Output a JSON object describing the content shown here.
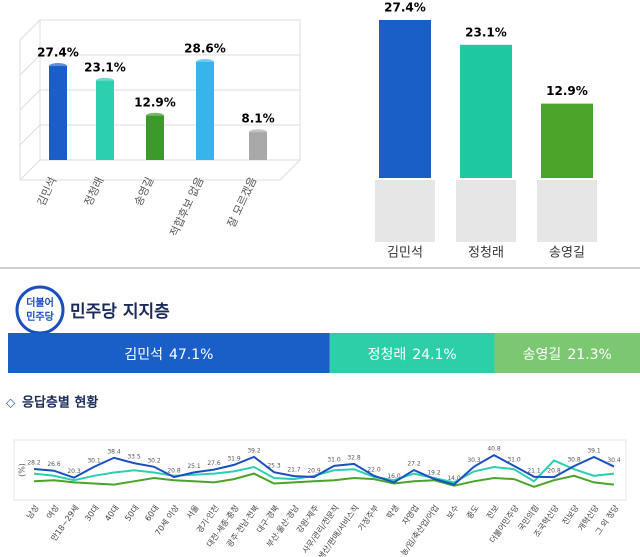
{
  "chart_data": [
    {
      "type": "bar3d",
      "categories": [
        "김민석",
        "정청래",
        "송영길",
        "적합후보 없음",
        "잘 모르겠음"
      ],
      "values": [
        27.4,
        23.1,
        12.9,
        28.6,
        8.1
      ],
      "value_labels": [
        "27.4%",
        "23.1%",
        "12.9%",
        "28.6%",
        "8.1%"
      ],
      "colors": [
        "#1a5fc8",
        "#2ccfb0",
        "#3a9a2a",
        "#37b4ea",
        "#a8a8a8"
      ],
      "ylim": [
        0,
        35
      ]
    },
    {
      "type": "bar",
      "categories": [
        "김민석",
        "정청래",
        "송영길"
      ],
      "values": [
        27.4,
        23.1,
        12.9
      ],
      "value_labels": [
        "27.4%",
        "23.1%",
        "12.9%"
      ],
      "colors": [
        "#1a5fc8",
        "#1ec8a0",
        "#4ca32a"
      ],
      "ylim": [
        0,
        27.4
      ]
    },
    {
      "type": "stacked-hbar",
      "title": "민주당 지지층",
      "logo": [
        "더불어",
        "민주당"
      ],
      "series": [
        {
          "name": "김민석",
          "values": [
            47.1
          ],
          "value_labels": [
            "47.1%"
          ],
          "color": "#1a5fc8"
        },
        {
          "name": "정청래",
          "values": [
            24.1
          ],
          "value_labels": [
            "24.1%"
          ],
          "color": "#2ccfa8"
        },
        {
          "name": "송영길",
          "values": [
            21.3
          ],
          "value_labels": [
            "21.3%"
          ],
          "color": "#7cc872"
        }
      ]
    },
    {
      "type": "line",
      "title": "응답층별 현황",
      "y_label": "(%)",
      "categories": [
        "남성",
        "여성",
        "만18~29세",
        "30대",
        "40대",
        "50대",
        "60대",
        "70세 이상",
        "서울",
        "경기·인천",
        "대전·세종·충청",
        "광주·전남·전북",
        "대구·경북",
        "부산·울산·경남",
        "강원·제주",
        "사무/관리/전문직",
        "생산/판매/서비스직",
        "가정주부",
        "학생",
        "자영업",
        "농/임/축산업/어업",
        "보수",
        "중도",
        "진보",
        "더불어민주당",
        "국민의힘",
        "조국혁신당",
        "진보당",
        "개혁신당",
        "그 외 정당"
      ],
      "series": [
        {
          "color": "#1a4fc0",
          "values": [
            28.2,
            26.6,
            20.3,
            30.1,
            38.4,
            33.5,
            30.2,
            20.8,
            25.1,
            27.6,
            31.9,
            39.2,
            25.3,
            21.7,
            20.9,
            31.0,
            32.8,
            22.0,
            16.0,
            27.2,
            19.2,
            14.0,
            30.3,
            40.8,
            31.0,
            21.1,
            20.8,
            30.8,
            39.1,
            30.4
          ],
          "value_labels": [
            "28.2",
            "26.6",
            "20.3",
            "30.1",
            "38.4",
            "33.5",
            "30.2",
            "20.8",
            "25.1",
            "27.6",
            "31.9",
            "39.2",
            "25.3",
            "21.7",
            "20.9",
            "31.0",
            "32.8",
            "22.0",
            "16.0",
            "27.2",
            "19.2",
            "14.0",
            "30.3",
            "40.8",
            "31.0",
            "21.1",
            "20.8",
            "30.8",
            "39.1",
            "30.4"
          ]
        },
        {
          "color": "#2ccfb0",
          "values": [
            24,
            22,
            18,
            22,
            25,
            27,
            25,
            22,
            23,
            24,
            26,
            30,
            20,
            19,
            22,
            27,
            28,
            21,
            18,
            24,
            20,
            16,
            26,
            30,
            28,
            17,
            36,
            28,
            22,
            24
          ]
        },
        {
          "color": "#4ca32a",
          "values": [
            17,
            18,
            16,
            15,
            14,
            17,
            20,
            18,
            17,
            16,
            19,
            24,
            15,
            16,
            17,
            18,
            20,
            19,
            15,
            17,
            18,
            13,
            17,
            20,
            19,
            12,
            18,
            22,
            16,
            14
          ]
        }
      ],
      "ylim": [
        0,
        50
      ]
    }
  ]
}
